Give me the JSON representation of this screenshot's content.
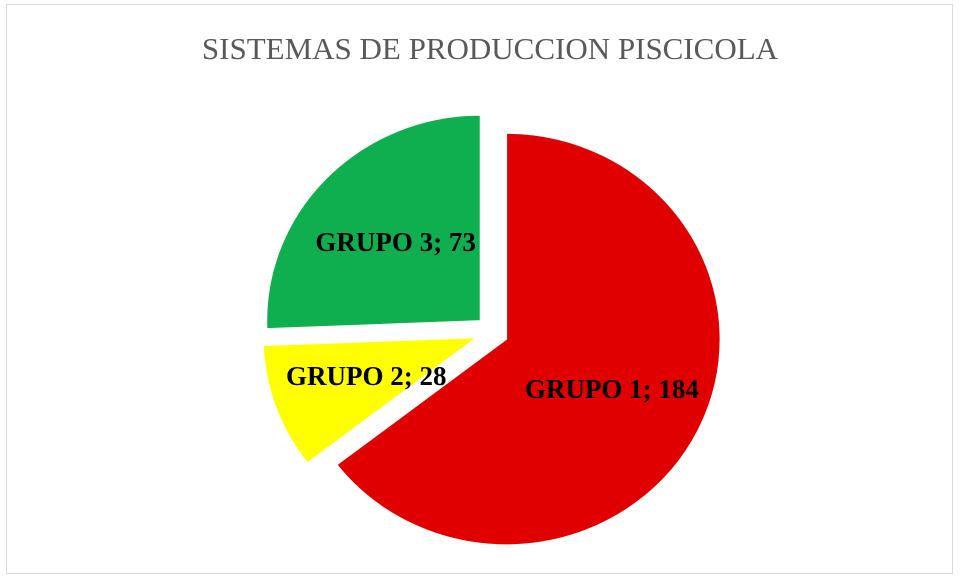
{
  "chart_data": {
    "type": "pie",
    "title": "SISTEMAS DE PRODUCCION PISCICOLA",
    "categories": [
      "GRUPO 1",
      "GRUPO 2",
      "GRUPO 3"
    ],
    "values": [
      184,
      28,
      73
    ],
    "value_labels": [
      "GRUPO 1; 184",
      "GRUPO 2; 28",
      "GRUPO 3; 73"
    ],
    "colors": [
      "#e00000",
      "#ffff00",
      "#0faf50"
    ]
  }
}
